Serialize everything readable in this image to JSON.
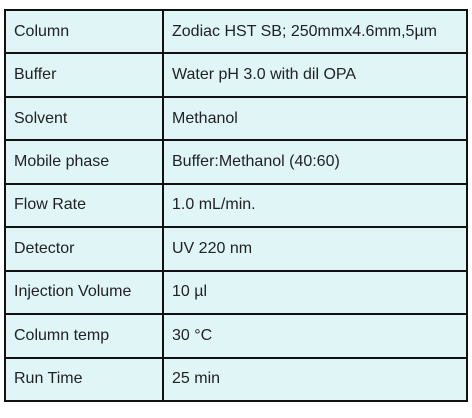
{
  "table": {
    "rows": [
      [
        "Column",
        "Zodiac HST SB; 250mmx4.6mm,5µm"
      ],
      [
        "Buffer",
        "Water pH 3.0 with dil OPA"
      ],
      [
        "Solvent",
        "Methanol"
      ],
      [
        "Mobile phase",
        "Buffer:Methanol (40:60)"
      ],
      [
        "Flow Rate",
        "1.0  mL/min."
      ],
      [
        "Detector",
        "UV 220 nm"
      ],
      [
        "Injection Volume",
        "10 µl"
      ],
      [
        "Column temp",
        "30 °C"
      ],
      [
        "Run Time",
        "25 min"
      ]
    ]
  }
}
